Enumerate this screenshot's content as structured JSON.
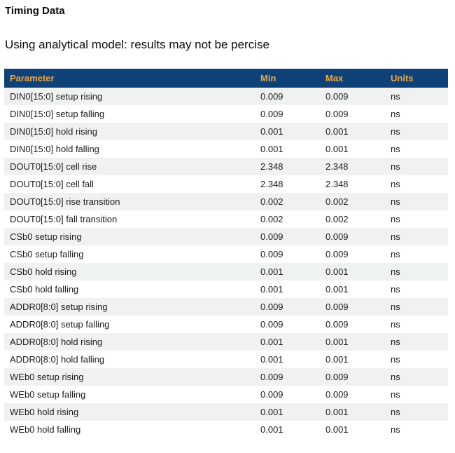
{
  "page": {
    "title": "Timing Data",
    "subtitle": "Using analytical model: results may not be percise"
  },
  "table": {
    "columns": [
      "Parameter",
      "Min",
      "Max",
      "Units"
    ],
    "rows": [
      {
        "param": "DIN0[15:0] setup rising",
        "min": "0.009",
        "max": "0.009",
        "units": "ns"
      },
      {
        "param": "DIN0[15:0] setup falling",
        "min": "0.009",
        "max": "0.009",
        "units": "ns"
      },
      {
        "param": "DIN0[15:0] hold rising",
        "min": "0.001",
        "max": "0.001",
        "units": "ns"
      },
      {
        "param": "DIN0[15:0] hold falling",
        "min": "0.001",
        "max": "0.001",
        "units": "ns"
      },
      {
        "param": "DOUT0[15:0] cell rise",
        "min": "2.348",
        "max": "2.348",
        "units": "ns"
      },
      {
        "param": "DOUT0[15:0] cell fall",
        "min": "2.348",
        "max": "2.348",
        "units": "ns"
      },
      {
        "param": "DOUT0[15:0] rise transition",
        "min": "0.002",
        "max": "0.002",
        "units": "ns"
      },
      {
        "param": "DOUT0[15:0] fall transition",
        "min": "0.002",
        "max": "0.002",
        "units": "ns"
      },
      {
        "param": "CSb0 setup rising",
        "min": "0.009",
        "max": "0.009",
        "units": "ns"
      },
      {
        "param": "CSb0 setup falling",
        "min": "0.009",
        "max": "0.009",
        "units": "ns"
      },
      {
        "param": "CSb0 hold rising",
        "min": "0.001",
        "max": "0.001",
        "units": "ns"
      },
      {
        "param": "CSb0 hold falling",
        "min": "0.001",
        "max": "0.001",
        "units": "ns"
      },
      {
        "param": "ADDR0[8:0] setup rising",
        "min": "0.009",
        "max": "0.009",
        "units": "ns"
      },
      {
        "param": "ADDR0[8:0] setup falling",
        "min": "0.009",
        "max": "0.009",
        "units": "ns"
      },
      {
        "param": "ADDR0[8:0] hold rising",
        "min": "0.001",
        "max": "0.001",
        "units": "ns"
      },
      {
        "param": "ADDR0[8:0] hold falling",
        "min": "0.001",
        "max": "0.001",
        "units": "ns"
      },
      {
        "param": "WEb0 setup rising",
        "min": "0.009",
        "max": "0.009",
        "units": "ns"
      },
      {
        "param": "WEb0 setup falling",
        "min": "0.009",
        "max": "0.009",
        "units": "ns"
      },
      {
        "param": "WEb0 hold rising",
        "min": "0.001",
        "max": "0.001",
        "units": "ns"
      },
      {
        "param": "WEb0 hold falling",
        "min": "0.001",
        "max": "0.001",
        "units": "ns"
      }
    ]
  },
  "colors": {
    "header_bg": "#0f4179",
    "header_text": "#f1a63c",
    "row_alt_bg": "#f0f1f1",
    "row_bg": "#ffffff",
    "body_text": "#1b1b1b"
  }
}
